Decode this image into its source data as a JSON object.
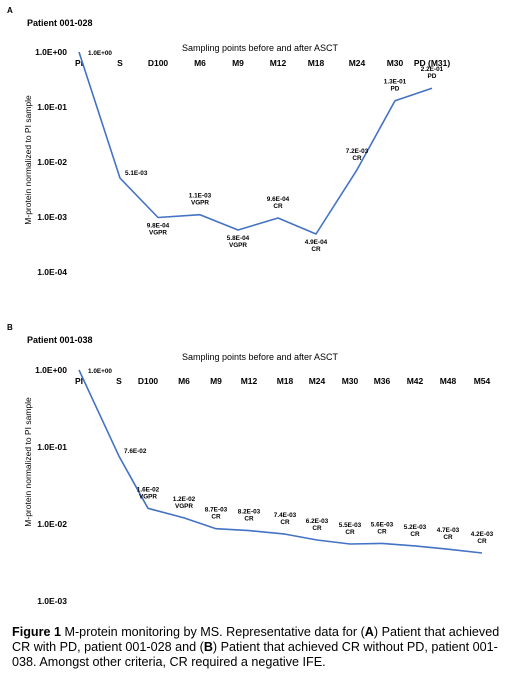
{
  "chart_data": [
    {
      "type": "line",
      "panel": "A",
      "title": "Patient 001-028",
      "top_axis_title": "Sampling points before and after ASCT",
      "ylabel": "M-protein  normalized to  PI sample",
      "yscale": "log",
      "ylim": [
        0.0001,
        1
      ],
      "yticks": [
        "1.0E+00",
        "1.0E-01",
        "1.0E-02",
        "1.0E-03",
        "1.0E-04"
      ],
      "categories": [
        "PI",
        "S",
        "D100",
        "M6",
        "M9",
        "M12",
        "M18",
        "M24",
        "M30",
        "PD (M31)"
      ],
      "values": [
        1.0,
        0.0051,
        0.00098,
        0.0011,
        0.00058,
        0.00096,
        0.00049,
        0.0072,
        0.13,
        0.22
      ],
      "labels": [
        "1.0E+00",
        "5.1E-03",
        "9.8E-04",
        "1.1E-03",
        "5.8E-04",
        "9.6E-04",
        "4.9E-04",
        "7.2E-03",
        "1.3E-01",
        "2.2E-01"
      ],
      "responses": [
        "",
        "",
        "VGPR",
        "VGPR",
        "VGPR",
        "CR",
        "CR",
        "CR",
        "PD",
        "PD"
      ],
      "line_color": "#4472c4"
    },
    {
      "type": "line",
      "panel": "B",
      "title": "Patient 001-038",
      "top_axis_title": "Sampling points before and after ASCT",
      "ylabel": "M-protein  normalized to PI sample",
      "yscale": "log",
      "ylim": [
        0.001,
        1
      ],
      "yticks": [
        "1.0E+00",
        "1.0E-01",
        "1.0E-02",
        "1.0E-03"
      ],
      "categories": [
        "PI",
        "S",
        "D100",
        "M6",
        "M9",
        "M12",
        "M18",
        "M24",
        "M30",
        "M36",
        "M42",
        "M48",
        "M54"
      ],
      "values": [
        1.0,
        0.076,
        0.016,
        0.012,
        0.0087,
        0.0082,
        0.0074,
        0.0062,
        0.0055,
        0.0056,
        0.0052,
        0.0047,
        0.0042
      ],
      "labels": [
        "1.0E+00",
        "7.6E-02",
        "1.6E-02",
        "1.2E-02",
        "8.7E-03",
        "8.2E-03",
        "7.4E-03",
        "6.2E-03",
        "5.5E-03",
        "5.6E-03",
        "5.2E-03",
        "4.7E-03",
        "4.2E-03"
      ],
      "responses": [
        "",
        "",
        "VGPR",
        "VGPR",
        "CR",
        "CR",
        "CR",
        "CR",
        "CR",
        "CR",
        "CR",
        "CR",
        "CR"
      ],
      "line_color": "#4472c4"
    }
  ],
  "caption": {
    "figure_label": "Figure 1",
    "text_1": " M-protein monitoring by MS.  Representative data for (",
    "letter_a": "A",
    "text_2": ") Patient that achieved CR with PD, patient 001-028 and (",
    "letter_b": "B",
    "text_3": ") Patient that achieved CR without PD, patient 001-038.  Amongst other criteria, CR required a negative IFE."
  }
}
